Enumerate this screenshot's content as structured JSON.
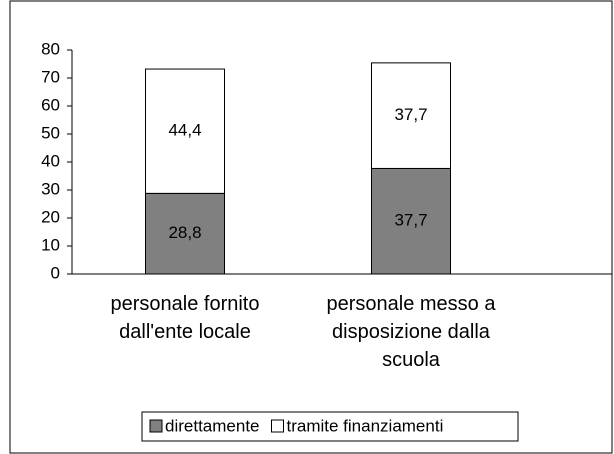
{
  "chart_data": {
    "type": "stacked_bar",
    "categories": [
      "personale  fornito\ndall'ente locale",
      "personale messo a\ndisposizione dalla\nscuola"
    ],
    "series": [
      {
        "name": "direttamente",
        "color": "#808080",
        "values": [
          28.8,
          37.7
        ],
        "value_labels": [
          "28,8",
          "37,7"
        ]
      },
      {
        "name": "tramite finanziamenti",
        "color": "#ffffff",
        "values": [
          44.4,
          37.7
        ],
        "value_labels": [
          "44,4",
          "37,7"
        ]
      }
    ],
    "ylim": [
      0,
      80
    ],
    "yticks": [
      0,
      10,
      20,
      30,
      40,
      50,
      60,
      70,
      80
    ],
    "legend": "bottom"
  }
}
